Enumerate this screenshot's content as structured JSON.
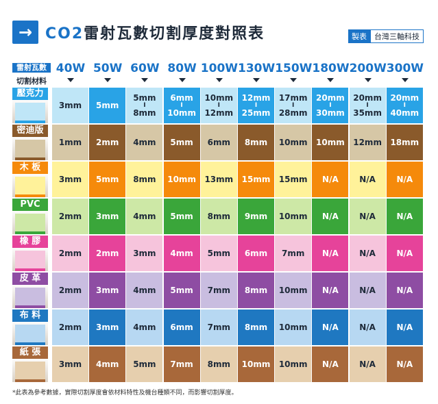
{
  "header": {
    "logo_glyph": "→",
    "title_prefix": "CO2",
    "title_main": "雷射瓦數切割厚度對照表",
    "maker_label": "製表",
    "maker_value": "台灣三軸科技"
  },
  "corner": {
    "top": "雷射瓦數",
    "bottom": "切割材料"
  },
  "powers": [
    "40W",
    "50W",
    "60W",
    "80W",
    "100W",
    "130W",
    "150W",
    "180W",
    "200W",
    "300W"
  ],
  "materials": [
    {
      "name": "壓克力",
      "color": "#29a3e6",
      "cells": [
        "3mm",
        "5mm",
        "5mm|8mm",
        "6mm|10mm",
        "10mm|12mm",
        "12mm|25mm",
        "17mm|28mm",
        "20mm|30mm",
        "20mm|35mm",
        "20mm|40mm"
      ]
    },
    {
      "name": "密迪版",
      "color": "#8a5a2b",
      "cells": [
        "1mm",
        "2mm",
        "4mm",
        "5mm",
        "6mm",
        "8mm",
        "10mm",
        "10mm",
        "12mm",
        "18mm"
      ]
    },
    {
      "name": "木 板",
      "color": "#f58a0b",
      "cells": [
        "3mm",
        "5mm",
        "8mm",
        "10mm",
        "13mm",
        "15mm",
        "15mm",
        "N/A",
        "N/A",
        "N/A"
      ]
    },
    {
      "name": "PVC",
      "color": "#3aa63a",
      "cells": [
        "2mm",
        "3mm",
        "4mm",
        "5mm",
        "8mm",
        "9mm",
        "10mm",
        "N/A",
        "N/A",
        "N/A"
      ]
    },
    {
      "name": "橡 膠",
      "color": "#e6439a",
      "cells": [
        "2mm",
        "2mm",
        "3mm",
        "4mm",
        "5mm",
        "6mm",
        "7mm",
        "N/A",
        "N/A",
        "N/A"
      ]
    },
    {
      "name": "皮 革",
      "color": "#8e4da3",
      "cells": [
        "2mm",
        "3mm",
        "4mm",
        "5mm",
        "7mm",
        "8mm",
        "10mm",
        "N/A",
        "N/A",
        "N/A"
      ]
    },
    {
      "name": "布 料",
      "color": "#1f78c1",
      "cells": [
        "2mm",
        "3mm",
        "4mm",
        "6mm",
        "7mm",
        "8mm",
        "10mm",
        "N/A",
        "N/A",
        "N/A"
      ]
    },
    {
      "name": "紙 張",
      "color": "#a8683a",
      "cells": [
        "3mm",
        "4mm",
        "5mm",
        "7mm",
        "8mm",
        "10mm",
        "10mm",
        "N/A",
        "N/A",
        "N/A"
      ]
    }
  ],
  "palette": {
    "light": [
      "#bfe6f7",
      "#d6c7a6",
      "#fff29a",
      "#cde8a6",
      "#f6c4dc",
      "#c9bde0",
      "#b7d8f2",
      "#e6cfae"
    ],
    "dark": [
      "#29a3e6",
      "#8a5a2b",
      "#f58a0b",
      "#3aa63a",
      "#e6439a",
      "#8e4da3",
      "#1f78c1",
      "#a8683a"
    ]
  },
  "footnote": "*此表為參考數據，實際切割厚度會依材料特性及機台種類不同，而影響切割厚度。"
}
